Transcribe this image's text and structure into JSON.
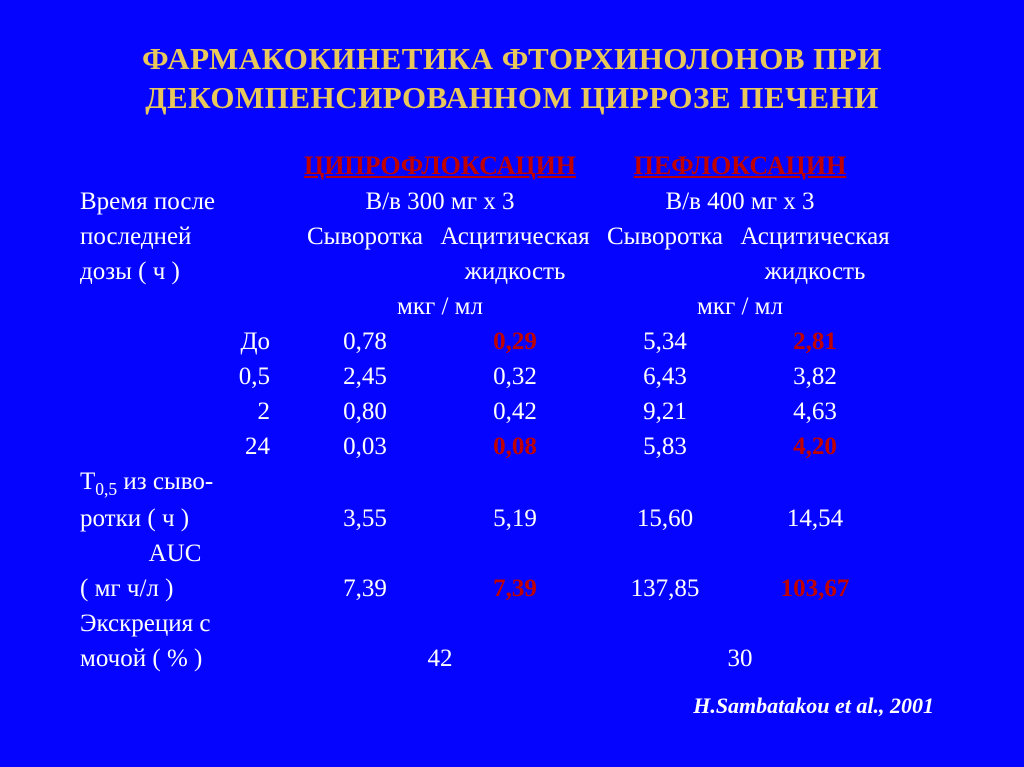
{
  "title": "ФАРМАКОКИНЕТИКА ФТОРХИНОЛОНОВ ПРИ ДЕКОМПЕНСИРОВАННОМ ЦИРРОЗЕ ПЕЧЕНИ",
  "drugs": {
    "cipro": "ЦИПРОФЛОКСАЦИН",
    "peflo": "ПЕФЛОКСАЦИН"
  },
  "row_header": {
    "line1": "Время после",
    "line2": "последней",
    "line3": "дозы ( ч )"
  },
  "dose": {
    "cipro": "В/в  300 мг х 3",
    "peflo": "В/в  400 мг х 3"
  },
  "sub_headers": {
    "serum": "Сыворотка",
    "ascitic1": "Асцитическая",
    "ascitic2": "жидкость",
    "unit": "мкг / мл"
  },
  "time_rows": [
    {
      "label": "До",
      "c_s": "0,78",
      "c_a": "0,29",
      "c_a_red": true,
      "p_s": "5,34",
      "p_a": "2,81",
      "p_a_red": true
    },
    {
      "label": "0,5",
      "c_s": "2,45",
      "c_a": "0,32",
      "c_a_red": false,
      "p_s": "6,43",
      "p_a": "3,82",
      "p_a_red": false
    },
    {
      "label": "2",
      "c_s": "0,80",
      "c_a": "0,42",
      "c_a_red": false,
      "p_s": "9,21",
      "p_a": "4,63",
      "p_a_red": false
    },
    {
      "label": "24",
      "c_s": "0,03",
      "c_a": "0,08",
      "c_a_red": true,
      "p_s": "5,83",
      "p_a": "4,20",
      "p_a_red": true
    }
  ],
  "t05": {
    "label1_prefix": "Т",
    "label1_sub": "0,5",
    "label1_suffix": " из сыво-",
    "label2": "ротки ( ч )",
    "c_s": "3,55",
    "c_a": "5,19",
    "p_s": "15,60",
    "p_a": "14,54"
  },
  "auc": {
    "label1": "AUC",
    "label2": "( мг ч/л )",
    "c_s": "7,39",
    "c_a": "7,39",
    "c_a_red": true,
    "p_s": "137,85",
    "p_a": "103,67",
    "p_a_red": true
  },
  "excretion": {
    "label1": "Экскреция с",
    "label2": "мочой ( % )",
    "cipro": "42",
    "peflo": "30"
  },
  "citation": "H.Sambatakou et al., 2001",
  "colors": {
    "background": "#0505ff",
    "title": "#e8c85a",
    "text": "#ffffff",
    "highlight": "#c00000"
  }
}
